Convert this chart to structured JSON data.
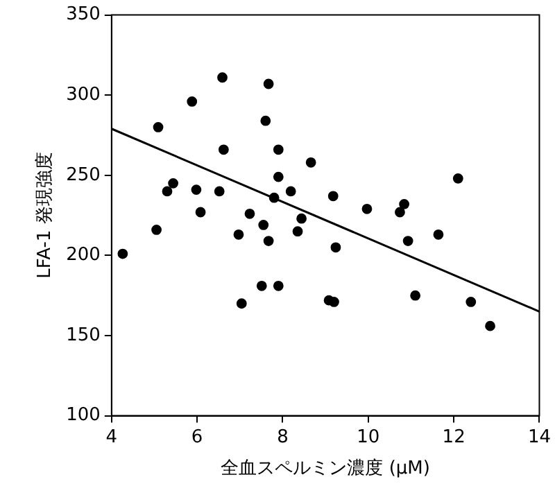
{
  "chart_data": {
    "type": "scatter",
    "xlabel": "全血スペルミン濃度 (μM)",
    "ylabel": "LFA-1 発現強度",
    "xlim": [
      4,
      14
    ],
    "xticks": [
      4,
      6,
      8,
      10,
      12,
      14
    ],
    "ylim": [
      100,
      350
    ],
    "yticks": [
      100,
      150,
      200,
      250,
      300,
      350
    ],
    "grid": false,
    "legend": false,
    "marker": "circle",
    "series": [
      {
        "type": "scatter",
        "color": "#000000",
        "x": [
          6.59,
          7.67,
          5.88,
          5.09,
          7.6,
          6.62,
          7.9,
          8.66,
          5.44,
          5.3,
          5.98,
          6.52,
          7.9,
          7.8,
          8.19,
          8.44,
          8.35,
          6.08,
          7.23,
          7.55,
          6.97,
          7.67,
          5.05,
          4.26,
          7.51,
          7.9,
          7.04,
          9.18,
          9.24,
          9.08,
          9.2,
          9.97,
          10.84,
          10.74,
          10.93,
          11.64,
          12.1,
          11.1,
          12.4,
          12.85
        ],
        "values": [
          311,
          307,
          296,
          280,
          284,
          266,
          266,
          258,
          245,
          240,
          241,
          240,
          249,
          236,
          240,
          223,
          215,
          227,
          226,
          219,
          213,
          209,
          216,
          201,
          181,
          181,
          170,
          237,
          205,
          172,
          171,
          229,
          232,
          227,
          209,
          213,
          248,
          175,
          171,
          156
        ]
      },
      {
        "type": "line",
        "color": "#000000",
        "marker": "none",
        "x": [
          4,
          14
        ],
        "values": [
          279,
          165
        ]
      }
    ]
  }
}
